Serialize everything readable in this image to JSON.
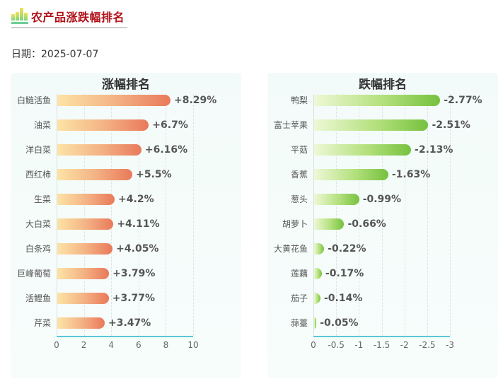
{
  "header": {
    "title": "农产品涨跌幅排名",
    "icon": "bar-chart-icon",
    "date_label": "日期：2025-07-07"
  },
  "colors": {
    "title": "#b01218",
    "up_bar_start": "#fde3a6",
    "up_bar_end": "#e9795a",
    "down_bar_start": "#eef8d6",
    "down_bar_end": "#76c13f",
    "axis": "#59c9d6"
  },
  "chart_data": [
    {
      "type": "bar",
      "orientation": "horizontal",
      "title": "涨幅排名",
      "categories": [
        "白鲢活鱼",
        "油菜",
        "洋白菜",
        "西红柿",
        "生菜",
        "大白菜",
        "白条鸡",
        "巨峰葡萄",
        "活鲤鱼",
        "芹菜"
      ],
      "values": [
        8.29,
        6.7,
        6.16,
        5.5,
        4.2,
        4.11,
        4.05,
        3.79,
        3.77,
        3.47
      ],
      "value_labels": [
        "+8.29%",
        "+6.7%",
        "+6.16%",
        "+5.5%",
        "+4.2%",
        "+4.11%",
        "+4.05%",
        "+3.79%",
        "+3.77%",
        "+3.47%"
      ],
      "xlabel": "",
      "ylabel": "",
      "xlim": [
        0,
        10
      ],
      "xticks": [
        "0",
        "2",
        "4",
        "6",
        "8",
        "10"
      ],
      "grid": true
    },
    {
      "type": "bar",
      "orientation": "horizontal",
      "title": "跌幅排名",
      "categories": [
        "鸭梨",
        "富士苹果",
        "平菇",
        "香蕉",
        "葱头",
        "胡萝卜",
        "大黄花鱼",
        "莲藕",
        "茄子",
        "蒜薹"
      ],
      "values": [
        -2.77,
        -2.51,
        -2.13,
        -1.63,
        -0.99,
        -0.66,
        -0.22,
        -0.17,
        -0.14,
        -0.05
      ],
      "value_labels": [
        "-2.77%",
        "-2.51%",
        "-2.13%",
        "-1.63%",
        "-0.99%",
        "-0.66%",
        "-0.22%",
        "-0.17%",
        "-0.14%",
        "-0.05%"
      ],
      "xlabel": "",
      "ylabel": "",
      "xlim": [
        0,
        -3
      ],
      "xticks": [
        "0",
        "-0.5",
        "-1",
        "-1.5",
        "-2",
        "-2.5",
        "-3"
      ],
      "grid": true
    }
  ]
}
